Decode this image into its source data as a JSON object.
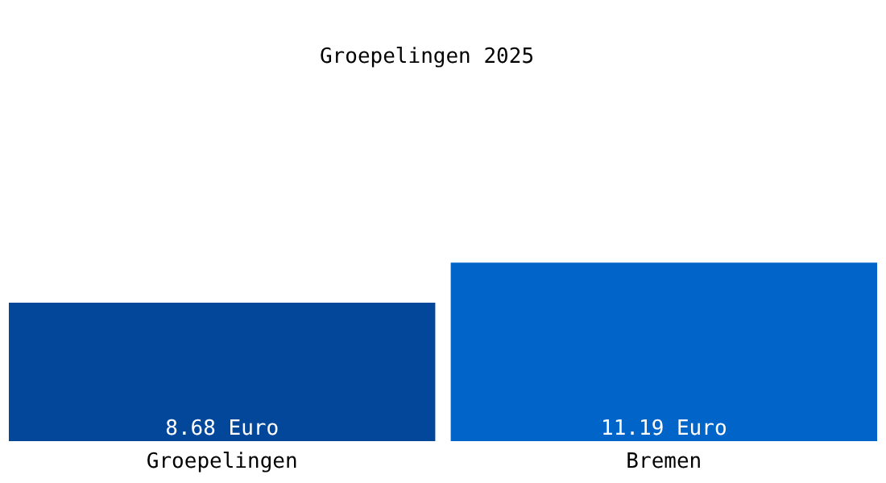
{
  "chart_data": {
    "type": "bar",
    "title": "Groepelingen 2025",
    "categories": [
      "Groepelingen",
      "Bremen"
    ],
    "values": [
      8.68,
      11.19
    ],
    "colors": [
      "#03479a",
      "#0064c8"
    ],
    "value_labels": [
      "8.68 Euro",
      "11.19 Euro"
    ],
    "grid": false
  }
}
